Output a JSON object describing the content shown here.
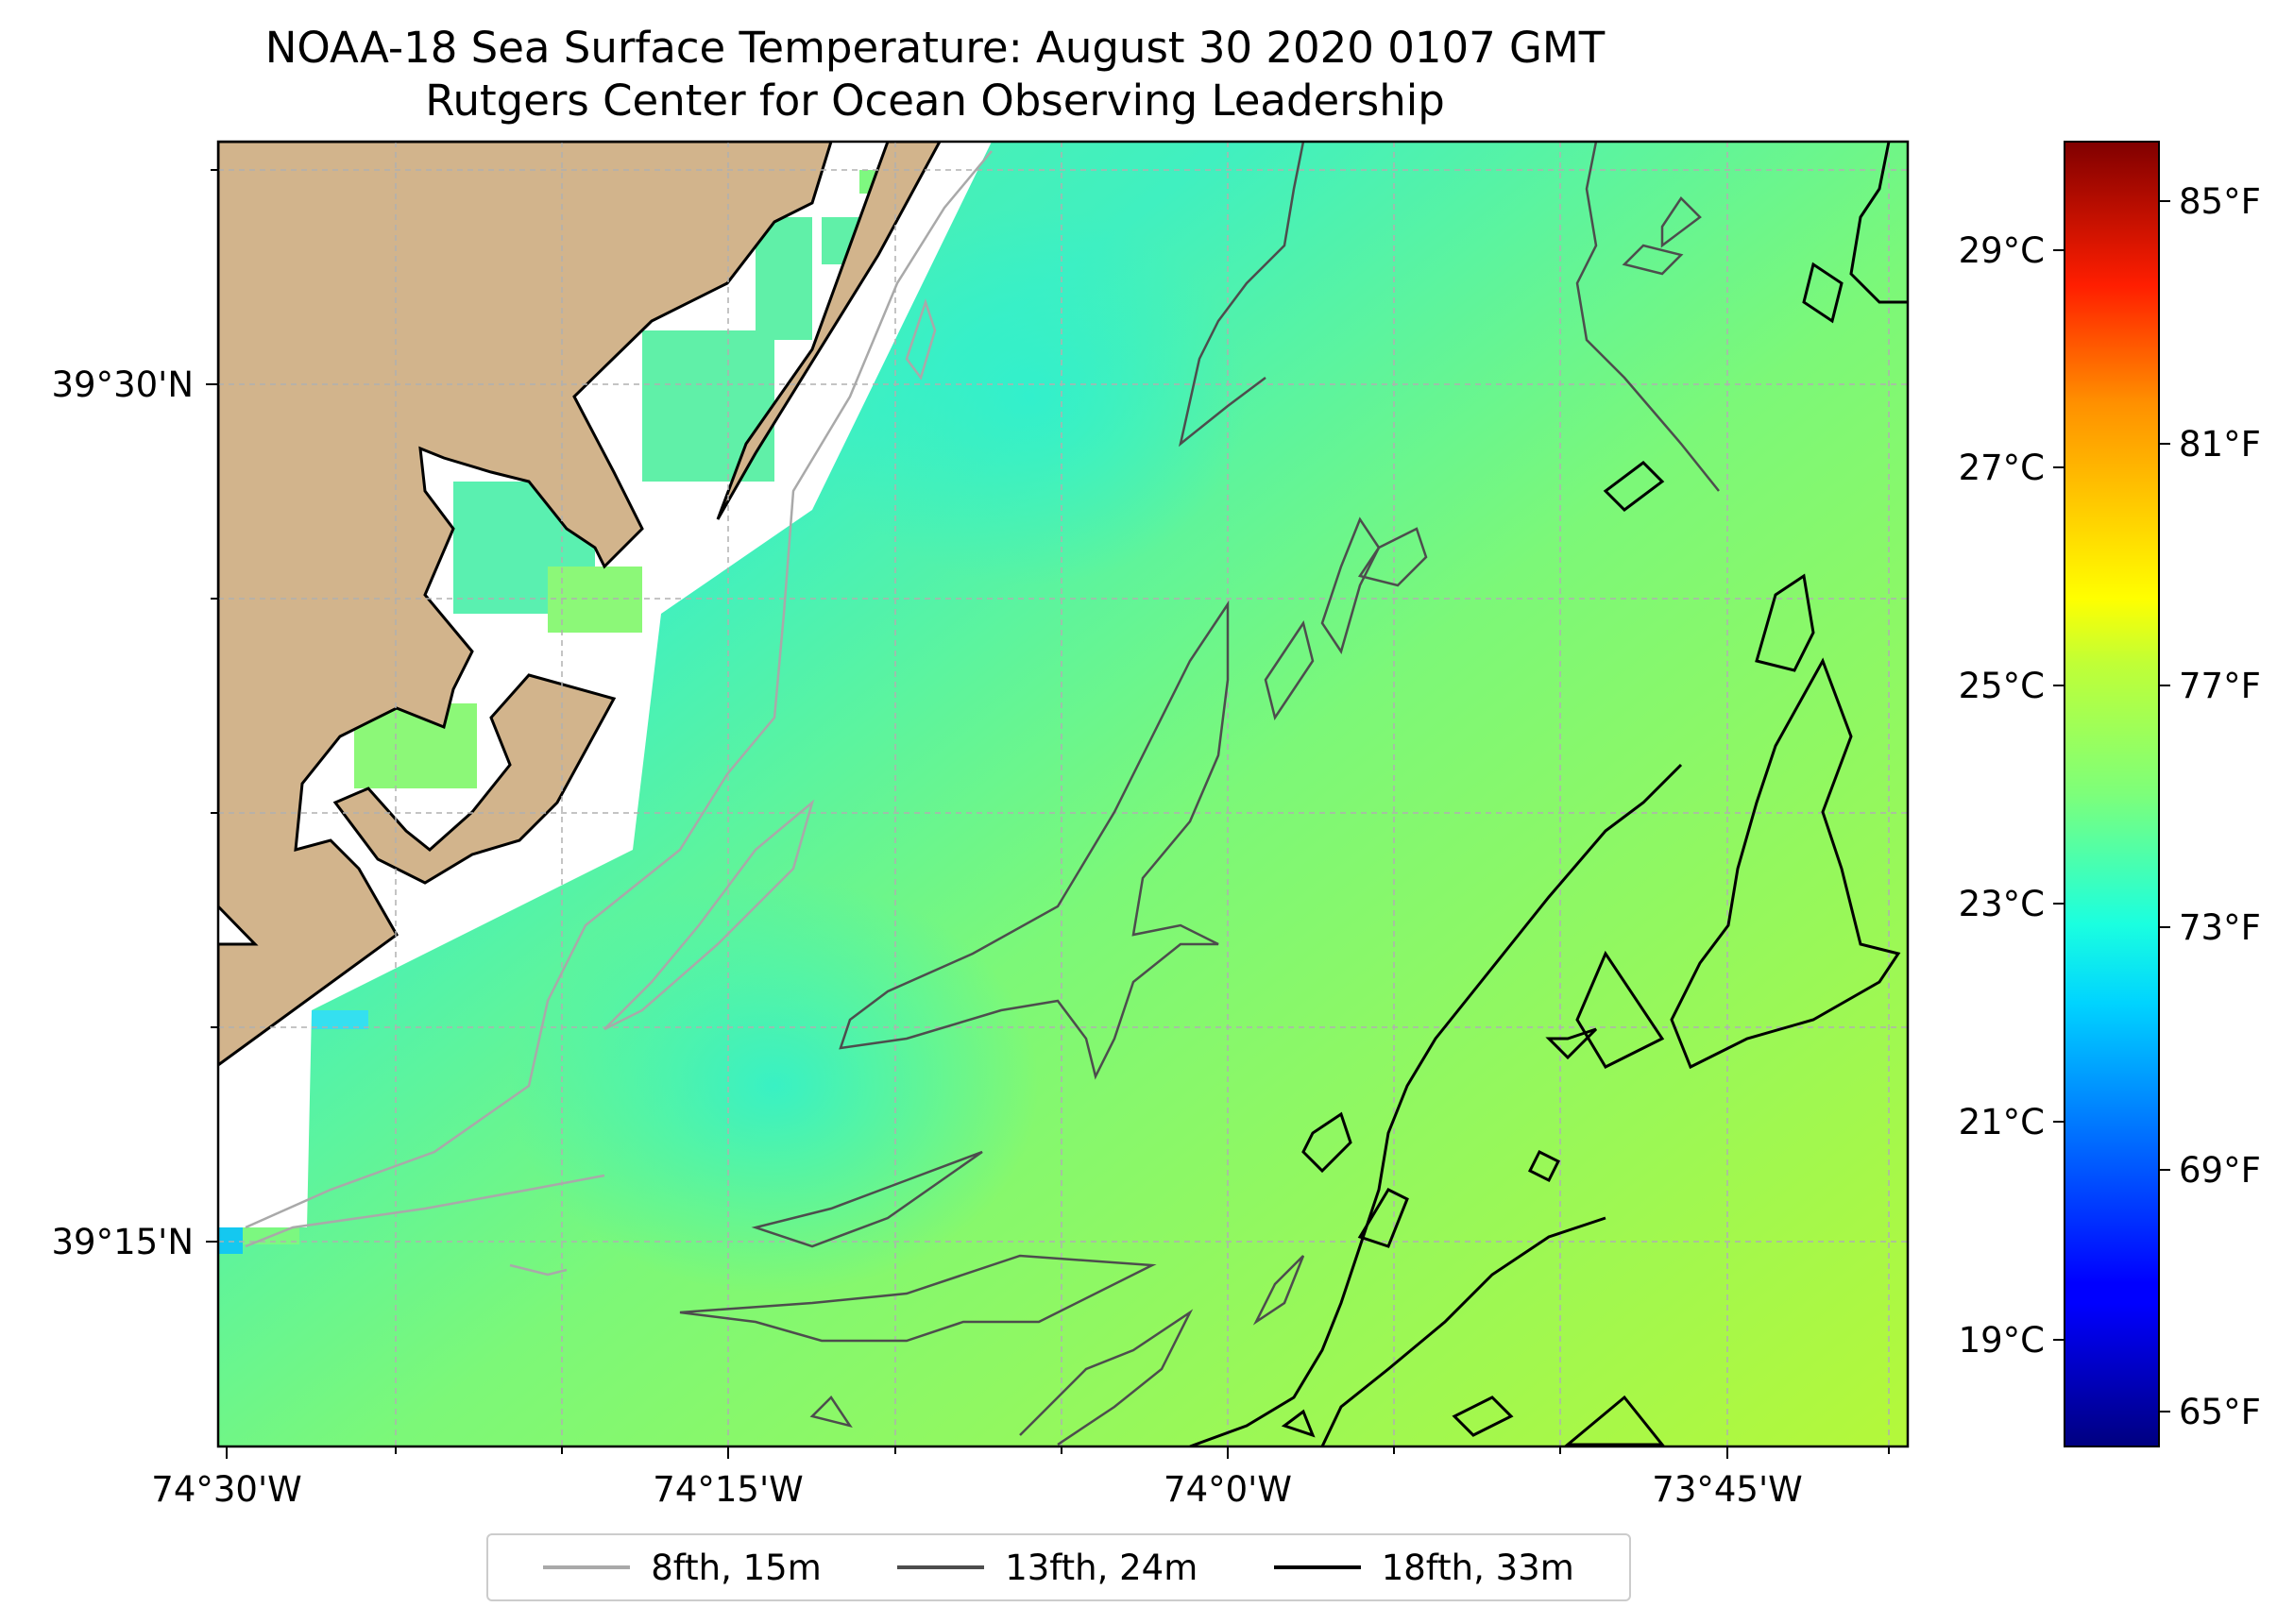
{
  "title": "NOAA-18 Sea Surface Temperature: August 30 2020 0107 GMT",
  "subtitle": "Rutgers Center for Ocean Observing Leadership",
  "map": {
    "lon_ticks": [
      {
        "label": "74°30'W",
        "lon": -74.5
      },
      {
        "label": "74°15'W",
        "lon": -74.25
      },
      {
        "label": "74°0'W",
        "lon": -74.0
      },
      {
        "label": "73°45'W",
        "lon": -73.75
      }
    ],
    "lat_ticks": [
      {
        "label": "39°30'N",
        "lat": 39.5
      },
      {
        "label": "39°15'N",
        "lat": 39.25
      }
    ],
    "colors": {
      "land": "#d2b48c",
      "coastline": "#000000",
      "grid": "#b0b0b0"
    }
  },
  "colorbar": {
    "colormap": "jet",
    "celsius_labels": [
      "29°C",
      "27°C",
      "25°C",
      "23°C",
      "21°C",
      "19°C"
    ],
    "fahrenheit_labels": [
      "85°F",
      "81°F",
      "77°F",
      "73°F",
      "69°F",
      "65°F"
    ]
  },
  "legend": [
    {
      "label": "8fth, 15m",
      "color": "#a9a9a9"
    },
    {
      "label": "13fth, 24m",
      "color": "#4d4d4d"
    },
    {
      "label": "18fth, 33m",
      "color": "#000000"
    }
  ]
}
